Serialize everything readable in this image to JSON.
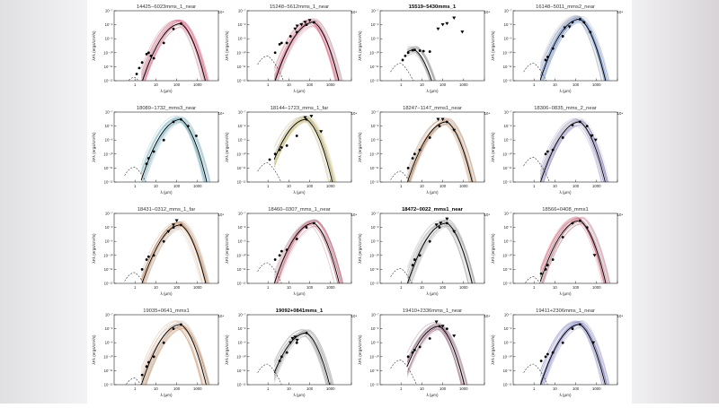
{
  "colors": {
    "background": "#ffffff",
    "axis": "#222222",
    "best_fit": "#000000",
    "envelope_extinction": "#333333"
  },
  "x_tick_labels": [
    "1",
    "10",
    "100",
    "1000",
    "10⁴"
  ],
  "y_tick_labels": [
    "10⁻¹²",
    "10⁻¹¹",
    "10⁻¹⁰",
    "10⁻⁹",
    "10⁻⁸",
    "10⁻⁷"
  ],
  "chart_data": [
    {
      "title": "14425−6023mms_1_near",
      "type": "line",
      "x_scale": "log",
      "y_scale": "log",
      "xlabel": "λ (μm)",
      "ylabel": "λFλ (ergs/cm²/s)",
      "xlim": [
        0.1,
        10000
      ],
      "ylim": [
        1e-12,
        1e-07
      ],
      "fit_color": "#d94b6f",
      "points": [
        [
          1.2,
          3e-12
        ],
        [
          1.6,
          8e-12
        ],
        [
          2.2,
          2e-11
        ],
        [
          3.6,
          8e-11
        ],
        [
          4.5,
          1e-10
        ],
        [
          5.8,
          6e-11
        ],
        [
          8,
          4e-11
        ],
        [
          24,
          5e-10
        ],
        [
          70,
          5e-09
        ],
        [
          160,
          1.2e-08
        ]
      ],
      "upper_limits": []
    },
    {
      "title": "15248−5612mms_1_near",
      "type": "line",
      "x_scale": "log",
      "y_scale": "log",
      "xlabel": "λ (μm)",
      "ylabel": "λFλ (ergs/cm²/s)",
      "xlim": [
        0.1,
        10000
      ],
      "ylim": [
        1e-12,
        1e-07
      ],
      "fit_color": "#d94b6f",
      "points": [
        [
          2.2,
          1e-10
        ],
        [
          3.6,
          4e-10
        ],
        [
          4.5,
          5e-10
        ],
        [
          8,
          5e-10
        ],
        [
          12,
          1.5e-09
        ],
        [
          24,
          3e-09
        ],
        [
          70,
          1e-08
        ],
        [
          160,
          1.5e-08
        ]
      ],
      "upper_limits": [
        [
          20,
          5e-09
        ],
        [
          25,
          8e-09
        ],
        [
          40,
          1e-08
        ],
        [
          60,
          1.5e-08
        ],
        [
          100,
          2e-08
        ]
      ]
    },
    {
      "title": "15519−5430mms_1",
      "type": "line",
      "x_scale": "log",
      "y_scale": "log",
      "xlabel": "λ (μm)",
      "ylabel": "λFλ (ergs/cm²/s)",
      "xlim": [
        0.1,
        10000
      ],
      "ylim": [
        1e-12,
        1e-07
      ],
      "fit_color": "#999999",
      "points": [
        [
          1.2,
          3e-11
        ],
        [
          1.6,
          6e-11
        ],
        [
          2.2,
          1e-10
        ],
        [
          3.6,
          1.5e-10
        ],
        [
          4.5,
          1.6e-10
        ],
        [
          8,
          1.4e-10
        ],
        [
          12,
          1.3e-10
        ],
        [
          24,
          1.2e-10
        ]
      ],
      "upper_limits": [
        [
          60,
          5e-09
        ],
        [
          100,
          1e-08
        ],
        [
          160,
          1.2e-08
        ],
        [
          350,
          3e-08
        ],
        [
          870,
          3e-09
        ]
      ]
    },
    {
      "title": "16148−5011_mms2_near",
      "type": "line",
      "x_scale": "log",
      "y_scale": "log",
      "xlabel": "λ (μm)",
      "ylabel": "λFλ (ergs/cm²/s)",
      "xlim": [
        0.1,
        10000
      ],
      "ylim": [
        1e-12,
        1e-07
      ],
      "fit_color": "#5a7fc4",
      "points": [
        [
          3.6,
          3e-11
        ],
        [
          4.5,
          5e-11
        ],
        [
          8,
          2e-10
        ],
        [
          24,
          1.5e-09
        ],
        [
          70,
          1.5e-08
        ],
        [
          160,
          2.5e-08
        ],
        [
          250,
          1.5e-08
        ],
        [
          500,
          3e-09
        ]
      ],
      "upper_limits": [
        [
          30,
          6e-09
        ],
        [
          50,
          7e-09
        ]
      ]
    },
    {
      "title": "18089−1732_mms3_near",
      "type": "line",
      "x_scale": "log",
      "y_scale": "log",
      "xlabel": "λ (μm)",
      "ylabel": "λFλ (ergs/cm²/s)",
      "xlim": [
        0.1,
        10000
      ],
      "ylim": [
        1e-12,
        1e-07
      ],
      "fit_color": "#6bb5c9",
      "points": [
        [
          3.6,
          2e-11
        ],
        [
          4.5,
          5e-11
        ],
        [
          8,
          1.5e-10
        ],
        [
          24,
          1e-09
        ],
        [
          70,
          2e-08
        ],
        [
          160,
          3e-08
        ],
        [
          350,
          1e-08
        ],
        [
          870,
          2e-09
        ]
      ],
      "upper_limits": []
    },
    {
      "title": "18144−1723_mms_1_far",
      "type": "line",
      "x_scale": "log",
      "y_scale": "log",
      "xlabel": "λ (μm)",
      "ylabel": "λFλ (ergs/cm²/s)",
      "xlim": [
        0.1,
        10000
      ],
      "ylim": [
        1e-12,
        1e-07
      ],
      "fit_color": "#c9b85a",
      "points": [
        [
          1.2,
          4e-11
        ],
        [
          2.2,
          1e-10
        ],
        [
          3.6,
          2e-10
        ],
        [
          4.5,
          3e-10
        ],
        [
          8,
          4e-10
        ],
        [
          24,
          2e-09
        ],
        [
          70,
          3e-08
        ]
      ],
      "upper_limits": [
        [
          60,
          4e-08
        ],
        [
          120,
          5e-08
        ],
        [
          350,
          4e-09
        ]
      ]
    },
    {
      "title": "18247−1147_mms1_near",
      "type": "line",
      "x_scale": "log",
      "y_scale": "log",
      "xlabel": "λ (μm)",
      "ylabel": "λFλ (ergs/cm²/s)",
      "xlim": [
        0.1,
        10000
      ],
      "ylim": [
        1e-12,
        1e-07
      ],
      "fit_color": "#c99060",
      "points": [
        [
          2.2,
          1e-11
        ],
        [
          3.6,
          5e-11
        ],
        [
          4.5,
          1e-10
        ],
        [
          8,
          2e-10
        ],
        [
          24,
          1.5e-09
        ],
        [
          70,
          1e-08
        ],
        [
          160,
          2e-08
        ]
      ],
      "upper_limits": [
        [
          60,
          3e-08
        ],
        [
          100,
          3e-08
        ],
        [
          350,
          5e-09
        ]
      ]
    },
    {
      "title": "18306−0835_mms_2_near",
      "type": "line",
      "x_scale": "log",
      "y_scale": "log",
      "xlabel": "λ (μm)",
      "ylabel": "λFλ (ergs/cm²/s)",
      "xlim": [
        0.1,
        10000
      ],
      "ylim": [
        1e-12,
        1e-07
      ],
      "fit_color": "#8a7cc4",
      "points": [
        [
          3.6,
          1e-10
        ],
        [
          4.5,
          1.5e-10
        ],
        [
          8,
          2e-10
        ],
        [
          24,
          1.5e-09
        ],
        [
          70,
          1.2e-08
        ],
        [
          160,
          2e-08
        ],
        [
          350,
          1e-08
        ]
      ],
      "upper_limits": [
        [
          600,
          2e-09
        ],
        [
          900,
          1e-09
        ]
      ]
    },
    {
      "title": "18431−0312_mms_1_far",
      "type": "line",
      "x_scale": "log",
      "y_scale": "log",
      "xlabel": "λ (μm)",
      "ylabel": "λFλ (ergs/cm²/s)",
      "xlim": [
        0.1,
        10000
      ],
      "ylim": [
        1e-12,
        1e-07
      ],
      "fit_color": "#c98a5a",
      "points": [
        [
          2.2,
          1e-11
        ],
        [
          3.6,
          5e-11
        ],
        [
          4.5,
          8e-11
        ],
        [
          8,
          1e-10
        ],
        [
          24,
          1e-09
        ],
        [
          70,
          1e-08
        ],
        [
          160,
          1.5e-08
        ]
      ],
      "upper_limits": [
        [
          40,
          5e-09
        ],
        [
          70,
          1.5e-08
        ],
        [
          100,
          3e-08
        ]
      ]
    },
    {
      "title": "18460−0307_mms_1_near",
      "type": "line",
      "x_scale": "log",
      "y_scale": "log",
      "xlabel": "λ (μm)",
      "ylabel": "λFλ (ergs/cm²/s)",
      "xlim": [
        0.1,
        10000
      ],
      "ylim": [
        1e-12,
        1e-07
      ],
      "fit_color": "#c94f6a",
      "points": [
        [
          2.2,
          5e-11
        ],
        [
          3.6,
          1e-10
        ],
        [
          4.5,
          2e-10
        ],
        [
          8,
          2.5e-10
        ],
        [
          24,
          1.5e-09
        ],
        [
          70,
          1e-08
        ],
        [
          160,
          2e-08
        ]
      ],
      "upper_limits": []
    },
    {
      "title": "18472−0022_mms1_near",
      "type": "line",
      "x_scale": "log",
      "y_scale": "log",
      "xlabel": "λ (μm)",
      "ylabel": "λFλ (ergs/cm²/s)",
      "xlim": [
        0.1,
        10000
      ],
      "ylim": [
        1e-12,
        1e-07
      ],
      "fit_color": "#999999",
      "points": [
        [
          3.6,
          2e-11
        ],
        [
          4.5,
          5e-11
        ],
        [
          8,
          1e-10
        ],
        [
          24,
          1e-09
        ],
        [
          70,
          1e-08
        ],
        [
          160,
          2e-08
        ]
      ],
      "upper_limits": [
        [
          50,
          1.5e-08
        ],
        [
          80,
          2e-08
        ],
        [
          160,
          4e-08
        ],
        [
          350,
          5e-09
        ]
      ]
    },
    {
      "title": "18566+0408_mms1",
      "type": "line",
      "x_scale": "log",
      "y_scale": "log",
      "xlabel": "λ (μm)",
      "ylabel": "λFλ (ergs/cm²/s)",
      "xlim": [
        0.1,
        10000
      ],
      "ylim": [
        1e-12,
        1e-07
      ],
      "fit_color": "#c94f6a",
      "points": [
        [
          2.2,
          5e-12
        ],
        [
          3.6,
          1e-11
        ],
        [
          4.5,
          2e-11
        ],
        [
          8,
          5e-11
        ],
        [
          24,
          2e-09
        ],
        [
          70,
          2e-08
        ],
        [
          160,
          3e-08
        ],
        [
          350,
          1e-08
        ]
      ],
      "upper_limits": [
        [
          800,
          1e-10
        ]
      ]
    },
    {
      "title": "19035+0641_mms1",
      "type": "line",
      "x_scale": "log",
      "y_scale": "log",
      "xlabel": "λ (μm)",
      "ylabel": "λFλ (ergs/cm²/s)",
      "xlim": [
        0.1,
        10000
      ],
      "ylim": [
        1e-12,
        1e-07
      ],
      "fit_color": "#c98a5a",
      "points": [
        [
          2.2,
          5e-12
        ],
        [
          3.6,
          2e-11
        ],
        [
          4.5,
          4e-11
        ],
        [
          8,
          1e-10
        ],
        [
          24,
          1e-09
        ],
        [
          70,
          1e-08
        ],
        [
          160,
          2e-08
        ]
      ],
      "upper_limits": []
    },
    {
      "title": "19092+0841mms_1",
      "type": "line",
      "x_scale": "log",
      "y_scale": "log",
      "xlabel": "λ (μm)",
      "ylabel": "λFλ (ergs/cm²/s)",
      "xlim": [
        0.1,
        10000
      ],
      "ylim": [
        1e-12,
        1e-07
      ],
      "fit_color": "#999999",
      "points": [
        [
          3.6,
          5e-11
        ],
        [
          4.5,
          1e-10
        ],
        [
          8,
          2e-10
        ],
        [
          24,
          1e-09
        ],
        [
          70,
          5e-09
        ]
      ],
      "upper_limits": [
        [
          12,
          1e-09
        ],
        [
          15,
          2e-09
        ],
        [
          20,
          2.5e-09
        ],
        [
          25,
          1.5e-09
        ]
      ]
    },
    {
      "title": "19410+2336mms_1_near",
      "type": "line",
      "x_scale": "log",
      "y_scale": "log",
      "xlabel": "λ (μm)",
      "ylabel": "λFλ (ergs/cm²/s)",
      "xlim": [
        0.1,
        10000
      ],
      "ylim": [
        1e-12,
        1e-07
      ],
      "fit_color": "#8a4b6a",
      "points": [
        [
          2.2,
          1e-10
        ],
        [
          3.6,
          2e-10
        ],
        [
          4.5,
          3e-10
        ],
        [
          8,
          5e-10
        ],
        [
          24,
          2e-09
        ],
        [
          70,
          1.5e-08
        ],
        [
          160,
          1e-08
        ]
      ],
      "upper_limits": [
        [
          50,
          3e-08
        ],
        [
          100,
          1.5e-08
        ],
        [
          350,
          3e-09
        ]
      ]
    },
    {
      "title": "19411+2306mms_1_near",
      "type": "line",
      "x_scale": "log",
      "y_scale": "log",
      "xlabel": "λ (μm)",
      "ylabel": "λFλ (ergs/cm²/s)",
      "xlim": [
        0.1,
        10000
      ],
      "ylim": [
        1e-12,
        1e-07
      ],
      "fit_color": "#6a6ac4",
      "points": [
        [
          2.2,
          5e-11
        ],
        [
          3.6,
          1e-10
        ],
        [
          4.5,
          1.5e-10
        ],
        [
          8,
          2e-10
        ],
        [
          24,
          1e-09
        ],
        [
          70,
          1e-08
        ],
        [
          160,
          2e-08
        ]
      ],
      "upper_limits": [
        [
          700,
          1e-09
        ]
      ]
    }
  ]
}
